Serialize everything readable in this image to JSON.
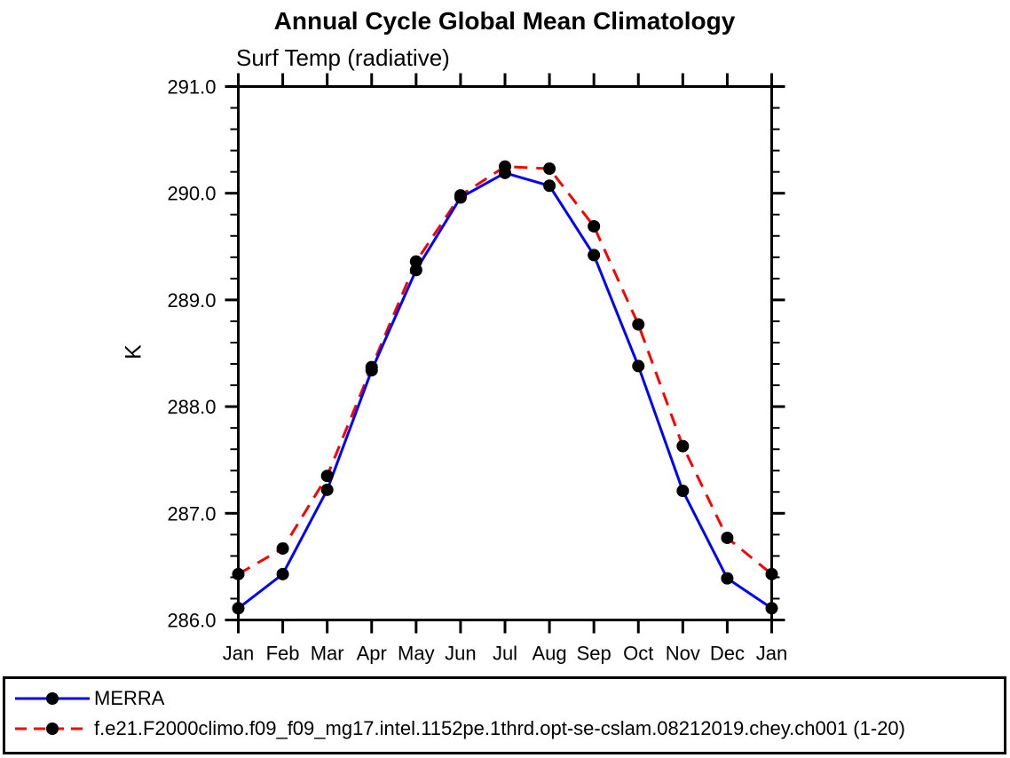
{
  "chart_data": {
    "type": "line",
    "title": "Annual Cycle Global Mean Climatology",
    "subtitle": "Surf Temp (radiative)",
    "ylabel": "K",
    "x": [
      "Jan",
      "Feb",
      "Mar",
      "Apr",
      "May",
      "Jun",
      "Jul",
      "Aug",
      "Sep",
      "Oct",
      "Nov",
      "Dec",
      "Jan"
    ],
    "ylim": [
      286.0,
      291.0
    ],
    "yticks": [
      286.0,
      287.0,
      288.0,
      289.0,
      290.0,
      291.0
    ],
    "ytick_labels": [
      "286.0",
      "287.0",
      "288.0",
      "289.0",
      "290.0",
      "291.0"
    ],
    "minor_tick_interval": 0.2,
    "grid": false,
    "tick_style": "outward-both-sides",
    "legend_position": "bottom-left-box",
    "marker": "filled-black-circle",
    "axis_color": "#000000",
    "series": [
      {
        "name": "MERRA",
        "color": "#0000ff",
        "line_style": "solid",
        "values": [
          286.11,
          286.43,
          287.22,
          288.34,
          289.28,
          289.96,
          290.19,
          290.07,
          289.42,
          288.38,
          287.21,
          286.39,
          286.11
        ]
      },
      {
        "name": "f.e21.F2000climo.f09_f09_mg17.intel.1152pe.1thrd.opt-se-cslam.08212019.chey.ch001 (1-20)",
        "color": "#ff0000",
        "line_style": "dashed",
        "values": [
          286.43,
          286.67,
          287.35,
          288.37,
          289.36,
          289.98,
          290.25,
          290.23,
          289.69,
          288.77,
          287.63,
          286.77,
          286.43
        ]
      }
    ]
  }
}
